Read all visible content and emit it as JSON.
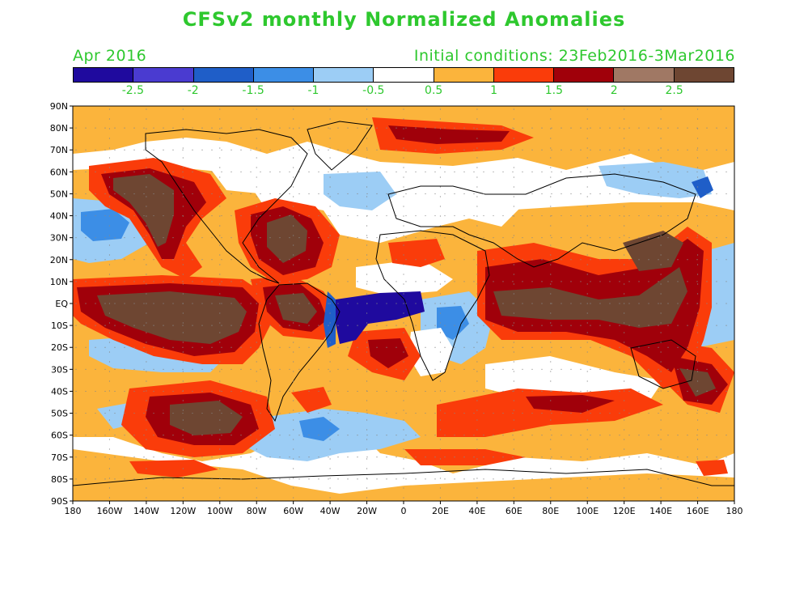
{
  "title": "CFSv2 monthly Normalized Anomalies",
  "month_label": "Apr 2016",
  "init_label": "Initial conditions: 23Feb2016-3Mar2016",
  "colorbar": {
    "colors": [
      "#1f0a9e",
      "#4a3bd0",
      "#1f5ec8",
      "#3c8ee6",
      "#9ccdf5",
      "#ffffff",
      "#fbb43c",
      "#fa3c0a",
      "#a0000a",
      "#a07864",
      "#6e4632"
    ],
    "tick_labels": [
      "-2.5",
      "-2",
      "-1.5",
      "-1",
      "-0.5",
      "0.5",
      "1",
      "1.5",
      "2",
      "2.5"
    ]
  },
  "axes": {
    "lat_labels": [
      "90N",
      "80N",
      "70N",
      "60N",
      "50N",
      "40N",
      "30N",
      "20N",
      "10N",
      "EQ",
      "10S",
      "20S",
      "30S",
      "40S",
      "50S",
      "60S",
      "70S",
      "80S",
      "90S"
    ],
    "lon_labels": [
      "180",
      "160W",
      "140W",
      "120W",
      "100W",
      "80W",
      "60W",
      "40W",
      "20W",
      "0",
      "20E",
      "40E",
      "60E",
      "80E",
      "100E",
      "120E",
      "140E",
      "160E",
      "180"
    ]
  }
}
